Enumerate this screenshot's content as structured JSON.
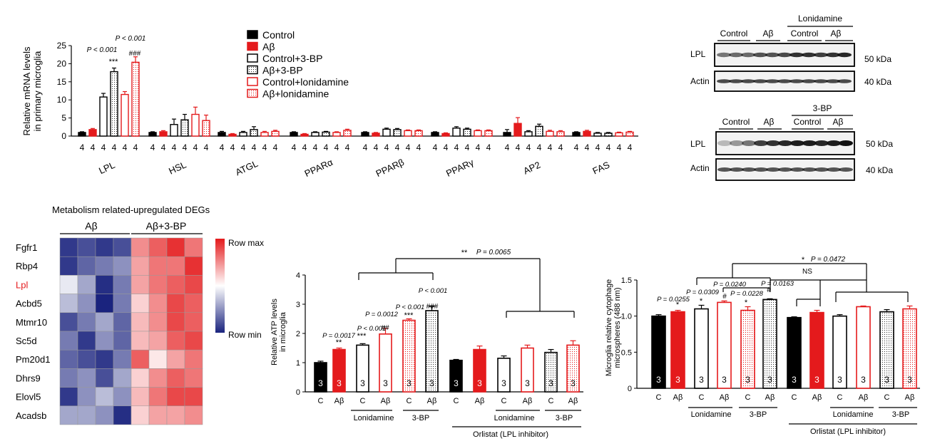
{
  "colors": {
    "black": "#000000",
    "red": "#e41a1c",
    "wb_band": "#1a1a1a",
    "heat_low": "#1a237e",
    "heat_mid": "#ffffff",
    "heat_high": "#e41a1c"
  },
  "mrna": {
    "ylabel1": "Relative mRNA levels",
    "ylabel2": "in primary microglia",
    "yticks": [
      "0",
      "5",
      "10",
      "15",
      "20",
      "25"
    ],
    "n_label": "4",
    "annot": {
      "p1": "P < 0.001",
      "p2": "P < 0.001",
      "stars": "***",
      "hashes": "###"
    },
    "legend": [
      "Control",
      "Aβ",
      "Control+3-BP",
      "Aβ+3-BP",
      "Control+lonidamine",
      "Aβ+lonidamine"
    ]
  },
  "western": {
    "lonidamine_title": "Lonidamine",
    "bp_title": "3-BP",
    "control": "Control",
    "abeta": "Aβ",
    "lpl": "LPL",
    "actin": "Actin",
    "kda50": "50 kDa",
    "kda40": "40 kDa"
  },
  "heatmap": {
    "title": "Metabolism related-upregulated DEGs",
    "group1": "Aβ",
    "group2": "Aβ+3-BP",
    "row_max": "Row max",
    "row_min": "Row min",
    "genes": [
      "Fgfr1",
      "Rbp4",
      "Lpl",
      "Acbd5",
      "Mtmr10",
      "Sc5d",
      "Pm20d1",
      "Dhrs9",
      "Elovl5",
      "Acadsb"
    ],
    "values": [
      [
        -0.9,
        -0.8,
        -0.9,
        -0.8,
        0.5,
        0.7,
        0.9,
        0.6
      ],
      [
        -0.9,
        -0.7,
        -0.6,
        -0.5,
        0.4,
        0.6,
        0.6,
        0.9
      ],
      [
        -0.1,
        -0.4,
        -0.95,
        -0.6,
        0.4,
        0.6,
        0.7,
        0.8
      ],
      [
        -0.3,
        -0.5,
        -1.0,
        -0.6,
        0.2,
        0.5,
        0.8,
        0.7
      ],
      [
        -0.8,
        -0.6,
        -0.4,
        -0.7,
        0.3,
        0.5,
        0.8,
        0.7
      ],
      [
        -0.6,
        -0.9,
        -0.5,
        -0.7,
        0.3,
        0.4,
        0.7,
        0.8
      ],
      [
        -0.7,
        -0.8,
        -0.9,
        -0.6,
        0.7,
        0.1,
        0.4,
        0.6
      ],
      [
        -0.6,
        -0.5,
        -0.8,
        -0.4,
        0.2,
        0.5,
        0.7,
        0.6
      ],
      [
        -0.9,
        -0.5,
        -0.3,
        -0.5,
        0.3,
        0.6,
        0.8,
        0.8
      ],
      [
        -0.4,
        -0.4,
        -0.5,
        -0.95,
        0.2,
        0.4,
        0.4,
        0.5
      ]
    ]
  },
  "atp": {
    "ylabel1": "Relative ATP levels",
    "ylabel2": "in microglia",
    "n_label": "3",
    "lonidamine": "Lonidamine",
    "bp": "3-BP",
    "orlistat": "Orlistat (LPL inhibitor)",
    "top_stars": "**",
    "top_p": "P = 0.0065",
    "p_0017": "P = 0.0017",
    "p_less1": "P < 0.001",
    "p_0012": "P = 0.0012",
    "p_less2": "P < 0.001",
    "p_less3": "P < 0.001",
    "s2": "**",
    "s3": "***",
    "h4": "##",
    "s5": "***",
    "h6": "###"
  },
  "phago": {
    "ylabel1": "Microglia relative cytophage",
    "ylabel2": "microspheres (488 nm)",
    "n_label": "3",
    "lonidamine": "Lonidamine",
    "bp": "3-BP",
    "orlistat": "Orlistat (LPL inhibitor)",
    "top_star": "*",
    "top_p": "P = 0.0472",
    "ns": "NS",
    "p_0255": "P = 0.0255",
    "p_0309": "P = 0.0309",
    "p_0240": "P = 0.0240",
    "p_0228": "P = 0.0228",
    "p_0163": "P = 0.0163",
    "star": "*",
    "hash": "#"
  },
  "chart_data": [
    {
      "type": "bar",
      "ylabel": "Relative mRNA levels in primary microglia",
      "ylim": [
        0,
        25
      ],
      "categories": [
        "LPL",
        "HSL",
        "ATGL",
        "PPARα",
        "PPARβ",
        "PPARγ",
        "AP2",
        "FAS"
      ],
      "series": [
        {
          "name": "Control",
          "values": [
            1.0,
            1.0,
            1.0,
            1.0,
            1.0,
            1.0,
            1.0,
            1.0
          ]
        },
        {
          "name": "Aβ",
          "values": [
            1.8,
            1.2,
            0.5,
            0.5,
            0.8,
            0.7,
            3.5,
            1.3
          ]
        },
        {
          "name": "Control+3-BP",
          "values": [
            10.8,
            3.2,
            1.0,
            1.0,
            1.9,
            2.2,
            1.2,
            0.8
          ]
        },
        {
          "name": "Aβ+3-BP",
          "values": [
            17.8,
            4.5,
            1.8,
            1.1,
            1.8,
            1.9,
            2.7,
            0.8
          ]
        },
        {
          "name": "Control+lonidamine",
          "values": [
            11.5,
            6.0,
            1.0,
            1.0,
            1.5,
            1.5,
            1.3,
            0.9
          ]
        },
        {
          "name": "Aβ+lonidamine",
          "values": [
            20.4,
            4.3,
            1.3,
            1.6,
            1.5,
            1.5,
            1.2,
            1.1
          ]
        }
      ],
      "errors": [
        [
          0.2,
          0.2,
          0.3,
          0.2,
          0.2,
          0.2,
          0.8,
          0.2
        ],
        [
          0.3,
          0.3,
          0.2,
          0.2,
          0.2,
          0.2,
          1.6,
          0.3
        ],
        [
          1.0,
          1.5,
          0.3,
          0.2,
          0.3,
          0.4,
          0.3,
          0.2
        ],
        [
          1.0,
          1.5,
          0.8,
          0.2,
          0.3,
          0.3,
          0.6,
          0.2
        ],
        [
          0.8,
          2.0,
          0.3,
          0.2,
          0.2,
          0.2,
          0.3,
          0.2
        ],
        [
          1.5,
          1.5,
          0.3,
          0.3,
          0.2,
          0.2,
          0.3,
          0.2
        ]
      ]
    },
    {
      "type": "bar",
      "ylabel": "Relative ATP levels in microglia",
      "ylim": [
        0,
        4
      ],
      "yticks": [
        "0",
        "1",
        "2",
        "3",
        "4"
      ],
      "categories": [
        "C",
        "Aβ",
        "C",
        "Aβ",
        "C",
        "Aβ",
        "C",
        "Aβ",
        "C",
        "Aβ",
        "C",
        "Aβ"
      ],
      "values": [
        1.0,
        1.45,
        1.6,
        1.98,
        2.45,
        2.78,
        1.08,
        1.45,
        1.15,
        1.5,
        1.35,
        1.6
      ],
      "errors": [
        0.05,
        0.05,
        0.05,
        0.2,
        0.05,
        0.15,
        0.03,
        0.12,
        0.08,
        0.1,
        0.1,
        0.15
      ]
    },
    {
      "type": "bar",
      "ylabel": "Microglia relative cytophage microspheres (488 nm)",
      "ylim": [
        0,
        1.5
      ],
      "yticks": [
        "0",
        "0.5",
        "1.0",
        "1.5"
      ],
      "categories": [
        "C",
        "Aβ",
        "C",
        "Aβ",
        "C",
        "Aβ",
        "C",
        "Aβ",
        "C",
        "Aβ",
        "C",
        "Aβ"
      ],
      "values": [
        1.0,
        1.06,
        1.1,
        1.19,
        1.08,
        1.23,
        0.98,
        1.05,
        1.0,
        1.13,
        1.06,
        1.1
      ],
      "errors": [
        0.02,
        0.02,
        0.05,
        0.02,
        0.05,
        0.01,
        0.01,
        0.03,
        0.02,
        0.01,
        0.03,
        0.04
      ]
    }
  ]
}
